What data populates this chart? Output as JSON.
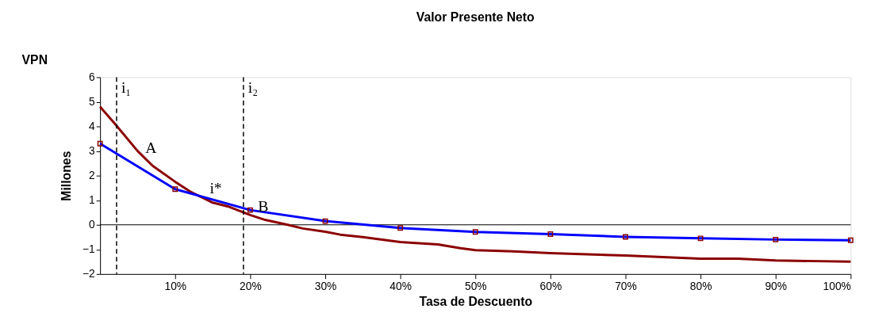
{
  "chart_data": {
    "type": "line",
    "title": "Valor Presente Neto",
    "xlabel": "Tasa de Descuento",
    "ylabel": "Millones",
    "annotations": [
      "VPN",
      {
        "text": "i*",
        "x": 15,
        "y": 0.95
      }
    ],
    "series": [
      {
        "name": "A",
        "color": "#8b0000",
        "marker": "none",
        "x": [
          0,
          2,
          5,
          7,
          10,
          12,
          15,
          17,
          20,
          22,
          25,
          27,
          30,
          32,
          35,
          40,
          45,
          48,
          50,
          55,
          60,
          70,
          80,
          85,
          90,
          100
        ],
        "values": [
          4.8,
          4.1,
          3.0,
          2.4,
          1.75,
          1.35,
          0.9,
          0.75,
          0.4,
          0.2,
          0.0,
          -0.15,
          -0.28,
          -0.4,
          -0.5,
          -0.7,
          -0.8,
          -0.95,
          -1.03,
          -1.08,
          -1.15,
          -1.25,
          -1.38,
          -1.38,
          -1.45,
          -1.5
        ]
      },
      {
        "name": "B",
        "color": "#0000ff",
        "marker": "square",
        "x": [
          0,
          10,
          20,
          30,
          40,
          50,
          60,
          70,
          80,
          90,
          100
        ],
        "values": [
          3.3,
          1.45,
          0.6,
          0.15,
          -0.13,
          -0.29,
          -0.38,
          -0.49,
          -0.55,
          -0.6,
          -0.63
        ]
      }
    ],
    "xlim": [
      0,
      100
    ],
    "xticks": [
      {
        "value": 10,
        "label": "10%"
      },
      {
        "value": 20,
        "label": "20%"
      },
      {
        "value": 30,
        "label": "30%"
      },
      {
        "value": 40,
        "label": "40%"
      },
      {
        "value": 50,
        "label": "50%"
      },
      {
        "value": 60,
        "label": "60%"
      },
      {
        "value": 70,
        "label": "70%"
      },
      {
        "value": 80,
        "label": "80%"
      },
      {
        "value": 90,
        "label": "90%"
      },
      {
        "value": 100,
        "label": "100%"
      }
    ],
    "ylim": [
      -2,
      6
    ],
    "yticks": [
      -2,
      -1,
      0,
      1,
      2,
      3,
      4,
      5,
      6
    ],
    "ref_lines": [
      {
        "axis": "y",
        "value": 0,
        "color": "#000000",
        "line_style": "solid"
      },
      {
        "axis": "x",
        "value": 2.2,
        "label": "i₁",
        "color": "#000000",
        "line_style": "dashed"
      },
      {
        "axis": "x",
        "value": 19.1,
        "label": "i₂",
        "color": "#000000",
        "line_style": "dashed"
      }
    ],
    "grid": false,
    "legend": false,
    "line_style": "solid"
  }
}
